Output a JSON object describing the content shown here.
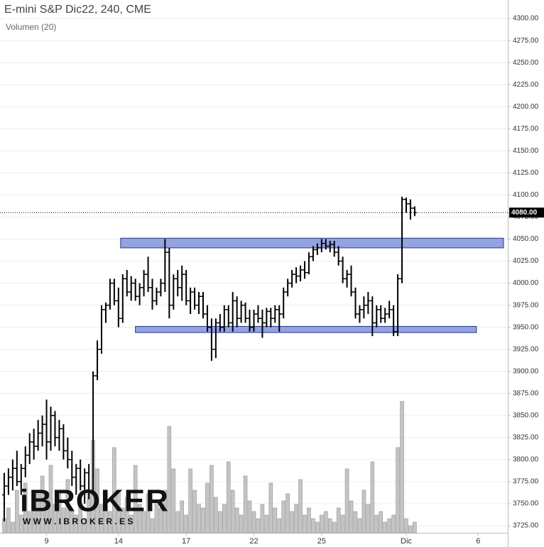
{
  "chart_data": {
    "type": "ohlc",
    "title": "E-mini S&P Dic22, 240, CME",
    "subtitle": "Volumen (20)",
    "logo": "iBROKER",
    "logo_url": "W W W . I B R O K E R . E S",
    "ylim": [
      3717,
      4321
    ],
    "yticks": [
      {
        "value": 3725,
        "label": "3725.00"
      },
      {
        "value": 3750,
        "label": "3750.00"
      },
      {
        "value": 3775,
        "label": "3775.00"
      },
      {
        "value": 3800,
        "label": "3800.00"
      },
      {
        "value": 3825,
        "label": "3825.00"
      },
      {
        "value": 3850,
        "label": "3850.00"
      },
      {
        "value": 3875,
        "label": "3875.00"
      },
      {
        "value": 3900,
        "label": "3900.00"
      },
      {
        "value": 3925,
        "label": "3925.00"
      },
      {
        "value": 3950,
        "label": "3950.00"
      },
      {
        "value": 3975,
        "label": "3975.00"
      },
      {
        "value": 4000,
        "label": "4000.00"
      },
      {
        "value": 4025,
        "label": "4025.00"
      },
      {
        "value": 4050,
        "label": "4050.00"
      },
      {
        "value": 4075,
        "label": "4075.00"
      },
      {
        "value": 4100,
        "label": "4100.00"
      },
      {
        "value": 4125,
        "label": "4125.00"
      },
      {
        "value": 4150,
        "label": "4150.00"
      },
      {
        "value": 4175,
        "label": "4175.00"
      },
      {
        "value": 4200,
        "label": "4200.00"
      },
      {
        "value": 4225,
        "label": "4225.00"
      },
      {
        "value": 4250,
        "label": "4250.00"
      },
      {
        "value": 4275,
        "label": "4275.00"
      },
      {
        "value": 4300,
        "label": "4300.00"
      }
    ],
    "xlim": [
      -1,
      119
    ],
    "xticks": [
      {
        "value": 10,
        "label": "9"
      },
      {
        "value": 27,
        "label": "14"
      },
      {
        "value": 43,
        "label": "17"
      },
      {
        "value": 59,
        "label": "22"
      },
      {
        "value": 75,
        "label": "25"
      },
      {
        "value": 95,
        "label": "Dic"
      },
      {
        "value": 112,
        "label": "6"
      }
    ],
    "grid": true,
    "color": "#000000",
    "volume_color": "#c4c4c4",
    "zone_color": "#7f93d9",
    "last_price": {
      "value": 4080,
      "label": "4080.00"
    },
    "zones": [
      {
        "x": [
          27.5,
          118
        ],
        "y": [
          4040,
          4051
        ]
      },
      {
        "x": [
          31,
          111.6
        ],
        "y": [
          3944,
          3951
        ]
      }
    ],
    "ohlc": [
      [
        3760,
        3785,
        3730,
        3770
      ],
      [
        3770,
        3790,
        3760,
        3780
      ],
      [
        3780,
        3800,
        3765,
        3790
      ],
      [
        3790,
        3810,
        3770,
        3775
      ],
      [
        3775,
        3795,
        3760,
        3790
      ],
      [
        3790,
        3815,
        3780,
        3805
      ],
      [
        3805,
        3830,
        3795,
        3820
      ],
      [
        3820,
        3835,
        3800,
        3815
      ],
      [
        3815,
        3845,
        3810,
        3830
      ],
      [
        3830,
        3850,
        3815,
        3840
      ],
      [
        3840,
        3868,
        3800,
        3820
      ],
      [
        3820,
        3860,
        3810,
        3850
      ],
      [
        3850,
        3855,
        3815,
        3825
      ],
      [
        3825,
        3845,
        3810,
        3835
      ],
      [
        3835,
        3840,
        3800,
        3810
      ],
      [
        3810,
        3825,
        3790,
        3800
      ],
      [
        3800,
        3810,
        3770,
        3780
      ],
      [
        3780,
        3795,
        3760,
        3790
      ],
      [
        3790,
        3800,
        3765,
        3770
      ],
      [
        3770,
        3790,
        3750,
        3785
      ],
      [
        3785,
        3795,
        3755,
        3765
      ],
      [
        3765,
        3900,
        3760,
        3895
      ],
      [
        3895,
        3935,
        3890,
        3925
      ],
      [
        3925,
        3975,
        3920,
        3970
      ],
      [
        3970,
        3978,
        3955,
        3975
      ],
      [
        3975,
        4005,
        3970,
        4000
      ],
      [
        4000,
        4005,
        3975,
        3980
      ],
      [
        3980,
        3995,
        3950,
        3960
      ],
      [
        3960,
        4010,
        3955,
        4005
      ],
      [
        4005,
        4015,
        3985,
        3990
      ],
      [
        3990,
        4008,
        3980,
        4000
      ],
      [
        4000,
        4005,
        3980,
        3985
      ],
      [
        3985,
        4000,
        3975,
        3995
      ],
      [
        3995,
        4015,
        3985,
        4010
      ],
      [
        4010,
        4030,
        3990,
        3995
      ],
      [
        3995,
        4005,
        3970,
        3980
      ],
      [
        3980,
        3995,
        3975,
        3990
      ],
      [
        3990,
        4005,
        3985,
        4000
      ],
      [
        4000,
        4050,
        3990,
        4035
      ],
      [
        4035,
        4040,
        3960,
        3975
      ],
      [
        3975,
        4010,
        3970,
        4005
      ],
      [
        4005,
        4015,
        3985,
        3995
      ],
      [
        3995,
        4020,
        3980,
        4010
      ],
      [
        4010,
        4015,
        3975,
        3980
      ],
      [
        3980,
        3995,
        3965,
        3990
      ],
      [
        3990,
        3995,
        3970,
        3975
      ],
      [
        3975,
        3990,
        3965,
        3985
      ],
      [
        3985,
        3990,
        3960,
        3965
      ],
      [
        3965,
        3975,
        3945,
        3950
      ],
      [
        3950,
        3960,
        3912,
        3925
      ],
      [
        3925,
        3960,
        3915,
        3955
      ],
      [
        3955,
        3965,
        3945,
        3950
      ],
      [
        3950,
        3975,
        3945,
        3970
      ],
      [
        3970,
        3975,
        3950,
        3955
      ],
      [
        3955,
        3990,
        3945,
        3980
      ],
      [
        3980,
        3985,
        3950,
        3960
      ],
      [
        3960,
        3980,
        3955,
        3975
      ],
      [
        3975,
        3978,
        3955,
        3960
      ],
      [
        3960,
        3970,
        3945,
        3950
      ],
      [
        3950,
        3970,
        3945,
        3965
      ],
      [
        3965,
        3975,
        3955,
        3960
      ],
      [
        3960,
        3970,
        3938,
        3955
      ],
      [
        3955,
        3972,
        3950,
        3968
      ],
      [
        3968,
        3972,
        3950,
        3960
      ],
      [
        3960,
        3975,
        3955,
        3970
      ],
      [
        3970,
        3975,
        3945,
        3965
      ],
      [
        3965,
        3995,
        3960,
        3990
      ],
      [
        3990,
        4005,
        3985,
        4000
      ],
      [
        4000,
        4015,
        3995,
        4010
      ],
      [
        4010,
        4018,
        4000,
        4008
      ],
      [
        4008,
        4020,
        4002,
        4015
      ],
      [
        4015,
        4025,
        4005,
        4012
      ],
      [
        4012,
        4035,
        4010,
        4030
      ],
      [
        4030,
        4042,
        4025,
        4038
      ],
      [
        4038,
        4045,
        4032,
        4040
      ],
      [
        4040,
        4050,
        4035,
        4045
      ],
      [
        4045,
        4050,
        4038,
        4042
      ],
      [
        4042,
        4048,
        4035,
        4044
      ],
      [
        4044,
        4048,
        4030,
        4035
      ],
      [
        4035,
        4042,
        4020,
        4025
      ],
      [
        4025,
        4030,
        4000,
        4005
      ],
      [
        4005,
        4015,
        3995,
        4010
      ],
      [
        4010,
        4020,
        3985,
        3990
      ],
      [
        3990,
        3995,
        3960,
        3965
      ],
      [
        3965,
        3975,
        3955,
        3970
      ],
      [
        3970,
        3985,
        3960,
        3975
      ],
      [
        3975,
        3990,
        3965,
        3980
      ],
      [
        3980,
        3985,
        3940,
        3955
      ],
      [
        3955,
        3975,
        3950,
        3970
      ],
      [
        3970,
        3975,
        3955,
        3960
      ],
      [
        3960,
        3972,
        3955,
        3965
      ],
      [
        3965,
        3980,
        3960,
        3970
      ],
      [
        3970,
        3975,
        3940,
        3945
      ],
      [
        3945,
        4010,
        3940,
        4005
      ],
      [
        4005,
        4098,
        4000,
        4095
      ],
      [
        4095,
        4097,
        4080,
        4090
      ],
      [
        4090,
        4095,
        4072,
        4085
      ],
      [
        4085,
        4087,
        4076,
        4080
      ]
    ],
    "volume": [
      20,
      35,
      15,
      60,
      25,
      70,
      30,
      45,
      55,
      80,
      50,
      95,
      40,
      60,
      35,
      75,
      30,
      25,
      40,
      20,
      55,
      130,
      90,
      40,
      60,
      30,
      120,
      60,
      35,
      50,
      25,
      95,
      40,
      30,
      55,
      20,
      45,
      35,
      60,
      150,
      90,
      30,
      45,
      25,
      90,
      60,
      40,
      35,
      70,
      95,
      50,
      30,
      40,
      100,
      60,
      35,
      25,
      80,
      45,
      30,
      20,
      40,
      25,
      70,
      35,
      20,
      45,
      55,
      30,
      40,
      75,
      25,
      35,
      20,
      15,
      25,
      30,
      20,
      15,
      35,
      25,
      90,
      45,
      30,
      20,
      60,
      40,
      100,
      25,
      30,
      15,
      20,
      25,
      120,
      185,
      20,
      10,
      15
    ]
  }
}
